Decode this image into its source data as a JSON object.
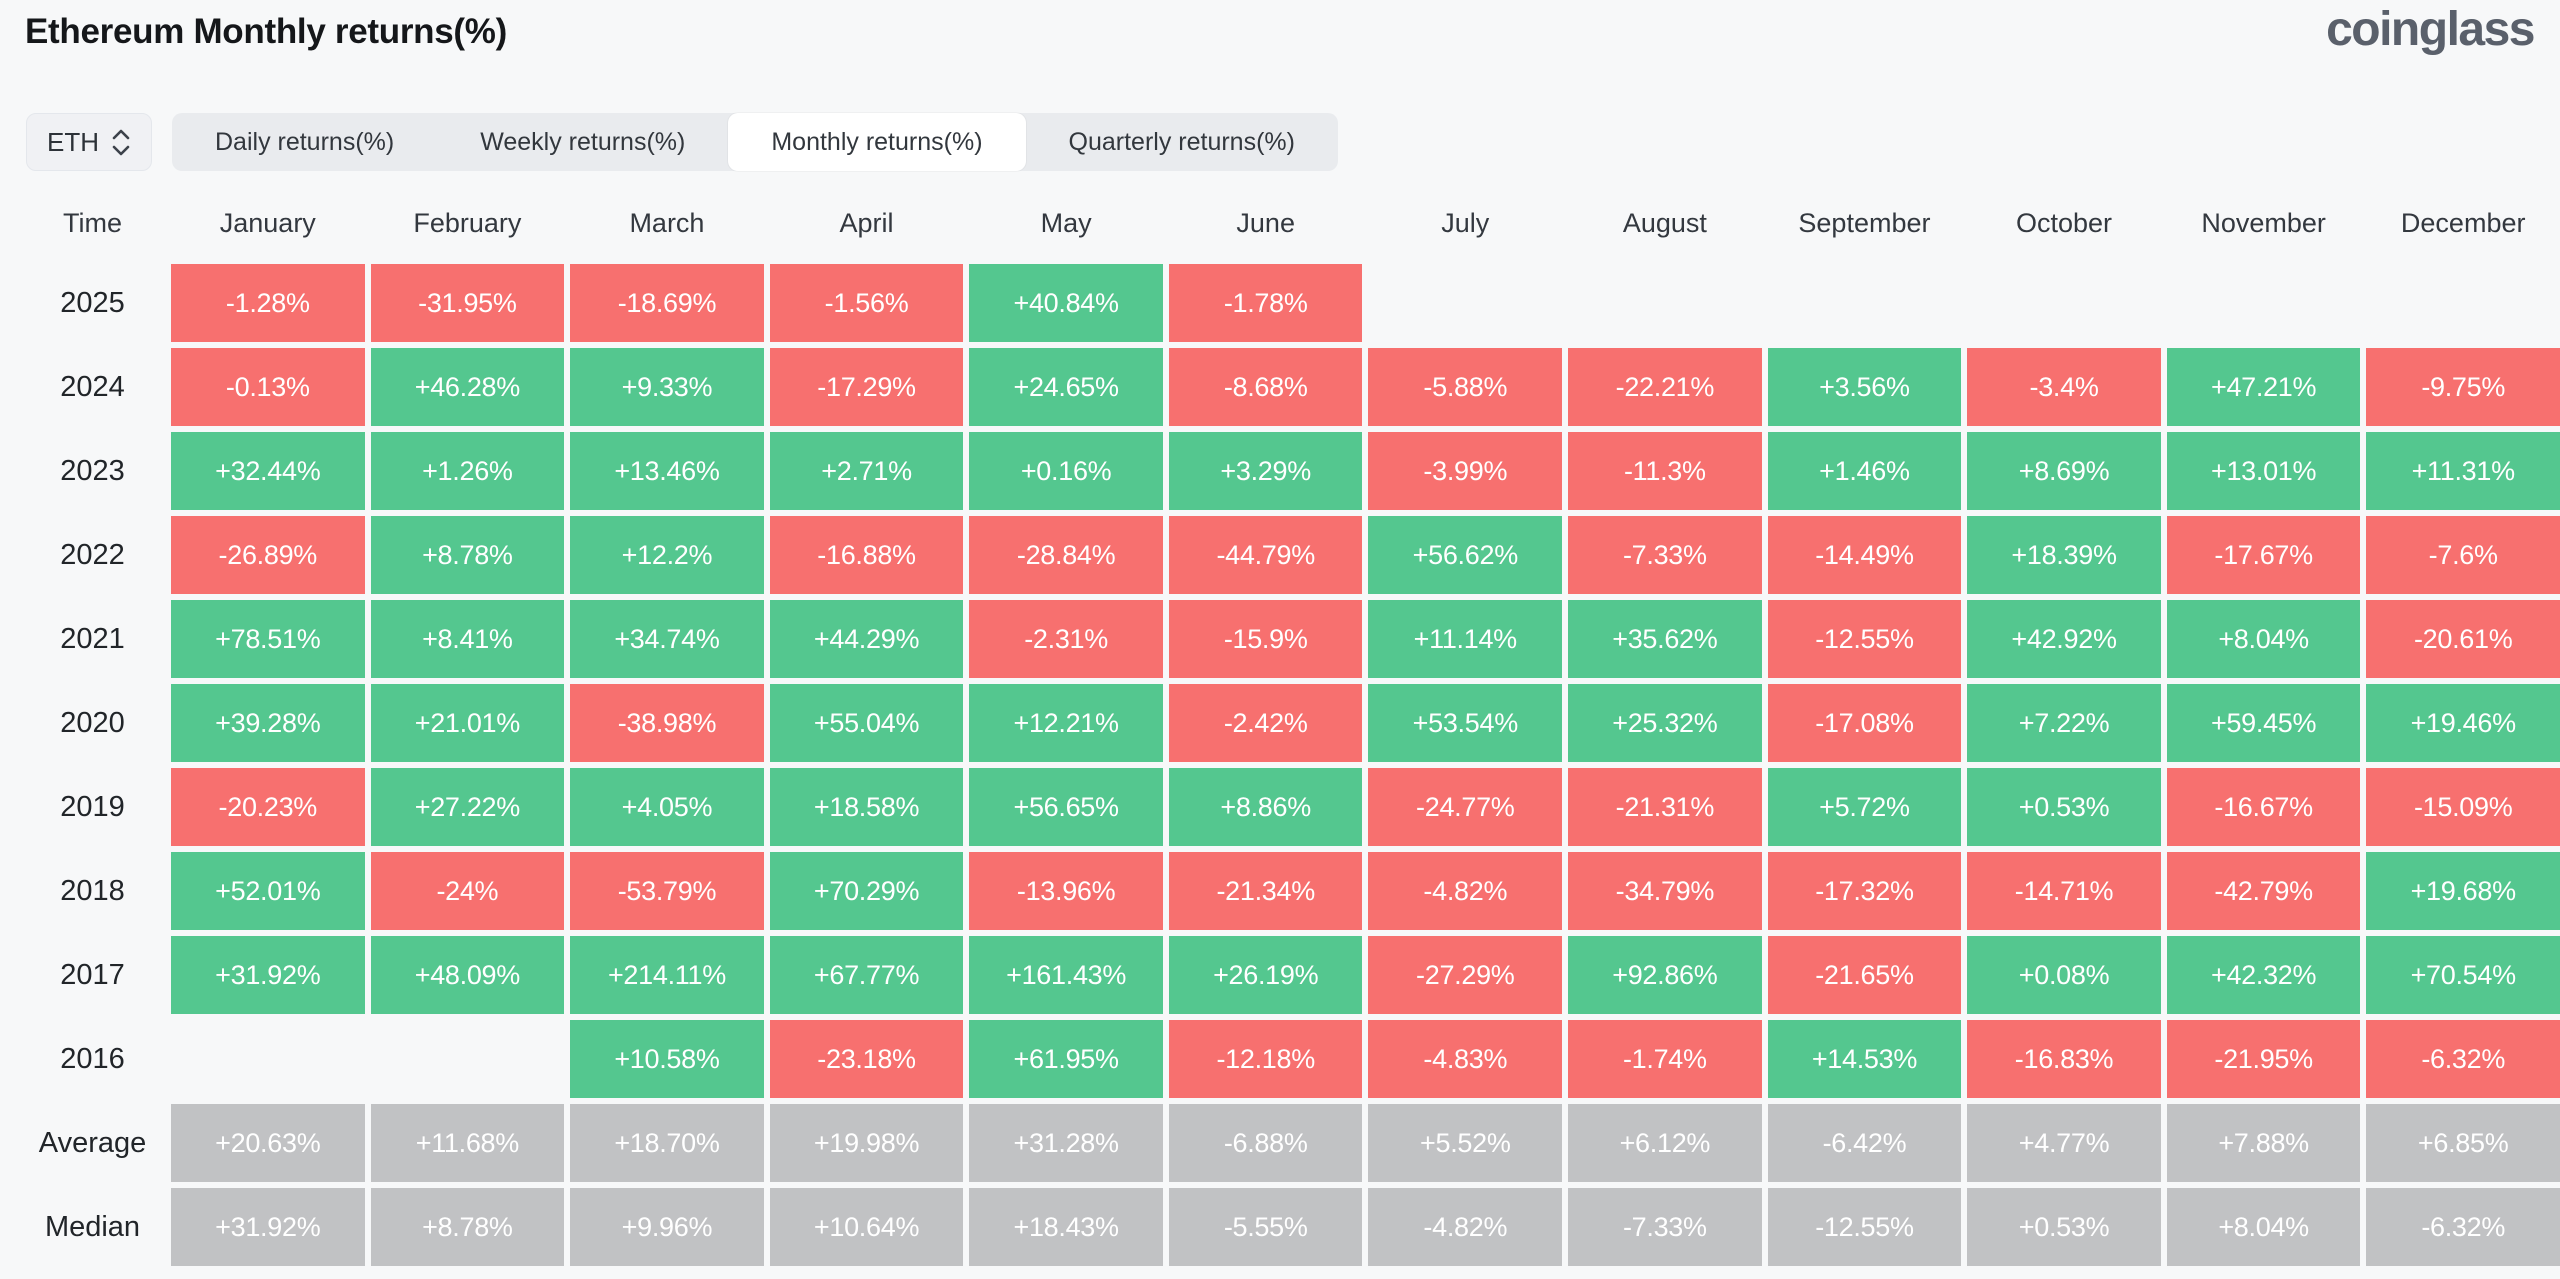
{
  "header": {
    "title": "Ethereum Monthly returns(%)",
    "logo": "coinglass"
  },
  "controls": {
    "symbol_select": {
      "value": "ETH",
      "icon": "updown-chevron-icon"
    },
    "tabs": [
      {
        "label": "Daily returns(%)",
        "active": false
      },
      {
        "label": "Weekly returns(%)",
        "active": false
      },
      {
        "label": "Monthly returns(%)",
        "active": true
      },
      {
        "label": "Quarterly returns(%)",
        "active": false
      }
    ]
  },
  "colors": {
    "positive": "#54c78f",
    "negative": "#f7706f",
    "summary": "#c1c2c4",
    "background": "#f7f8f9",
    "cell_text": "#ffffff"
  },
  "chart_data": {
    "type": "heatmap",
    "title": "Ethereum Monthly returns(%)",
    "row_header": "Time",
    "categories": [
      "January",
      "February",
      "March",
      "April",
      "May",
      "June",
      "July",
      "August",
      "September",
      "October",
      "November",
      "December"
    ],
    "rows": [
      {
        "label": "2025",
        "kind": "year",
        "values": [
          "-1.28%",
          "-31.95%",
          "-18.69%",
          "-1.56%",
          "+40.84%",
          "-1.78%",
          "",
          "",
          "",
          "",
          "",
          ""
        ]
      },
      {
        "label": "2024",
        "kind": "year",
        "values": [
          "-0.13%",
          "+46.28%",
          "+9.33%",
          "-17.29%",
          "+24.65%",
          "-8.68%",
          "-5.88%",
          "-22.21%",
          "+3.56%",
          "-3.4%",
          "+47.21%",
          "-9.75%"
        ]
      },
      {
        "label": "2023",
        "kind": "year",
        "values": [
          "+32.44%",
          "+1.26%",
          "+13.46%",
          "+2.71%",
          "+0.16%",
          "+3.29%",
          "-3.99%",
          "-11.3%",
          "+1.46%",
          "+8.69%",
          "+13.01%",
          "+11.31%"
        ]
      },
      {
        "label": "2022",
        "kind": "year",
        "values": [
          "-26.89%",
          "+8.78%",
          "+12.2%",
          "-16.88%",
          "-28.84%",
          "-44.79%",
          "+56.62%",
          "-7.33%",
          "-14.49%",
          "+18.39%",
          "-17.67%",
          "-7.6%"
        ]
      },
      {
        "label": "2021",
        "kind": "year",
        "values": [
          "+78.51%",
          "+8.41%",
          "+34.74%",
          "+44.29%",
          "-2.31%",
          "-15.9%",
          "+11.14%",
          "+35.62%",
          "-12.55%",
          "+42.92%",
          "+8.04%",
          "-20.61%"
        ]
      },
      {
        "label": "2020",
        "kind": "year",
        "values": [
          "+39.28%",
          "+21.01%",
          "-38.98%",
          "+55.04%",
          "+12.21%",
          "-2.42%",
          "+53.54%",
          "+25.32%",
          "-17.08%",
          "+7.22%",
          "+59.45%",
          "+19.46%"
        ]
      },
      {
        "label": "2019",
        "kind": "year",
        "values": [
          "-20.23%",
          "+27.22%",
          "+4.05%",
          "+18.58%",
          "+56.65%",
          "+8.86%",
          "-24.77%",
          "-21.31%",
          "+5.72%",
          "+0.53%",
          "-16.67%",
          "-15.09%"
        ]
      },
      {
        "label": "2018",
        "kind": "year",
        "values": [
          "+52.01%",
          "-24%",
          "-53.79%",
          "+70.29%",
          "-13.96%",
          "-21.34%",
          "-4.82%",
          "-34.79%",
          "-17.32%",
          "-14.71%",
          "-42.79%",
          "+19.68%"
        ]
      },
      {
        "label": "2017",
        "kind": "year",
        "values": [
          "+31.92%",
          "+48.09%",
          "+214.11%",
          "+67.77%",
          "+161.43%",
          "+26.19%",
          "-27.29%",
          "+92.86%",
          "-21.65%",
          "+0.08%",
          "+42.32%",
          "+70.54%"
        ]
      },
      {
        "label": "2016",
        "kind": "year",
        "values": [
          "",
          "",
          "+10.58%",
          "-23.18%",
          "+61.95%",
          "-12.18%",
          "-4.83%",
          "-1.74%",
          "+14.53%",
          "-16.83%",
          "-21.95%",
          "-6.32%"
        ]
      },
      {
        "label": "Average",
        "kind": "summary",
        "values": [
          "+20.63%",
          "+11.68%",
          "+18.70%",
          "+19.98%",
          "+31.28%",
          "-6.88%",
          "+5.52%",
          "+6.12%",
          "-6.42%",
          "+4.77%",
          "+7.88%",
          "+6.85%"
        ]
      },
      {
        "label": "Median",
        "kind": "summary",
        "values": [
          "+31.92%",
          "+8.78%",
          "+9.96%",
          "+10.64%",
          "+18.43%",
          "-5.55%",
          "-4.82%",
          "-7.33%",
          "-12.55%",
          "+0.53%",
          "+8.04%",
          "-6.32%"
        ]
      }
    ]
  }
}
